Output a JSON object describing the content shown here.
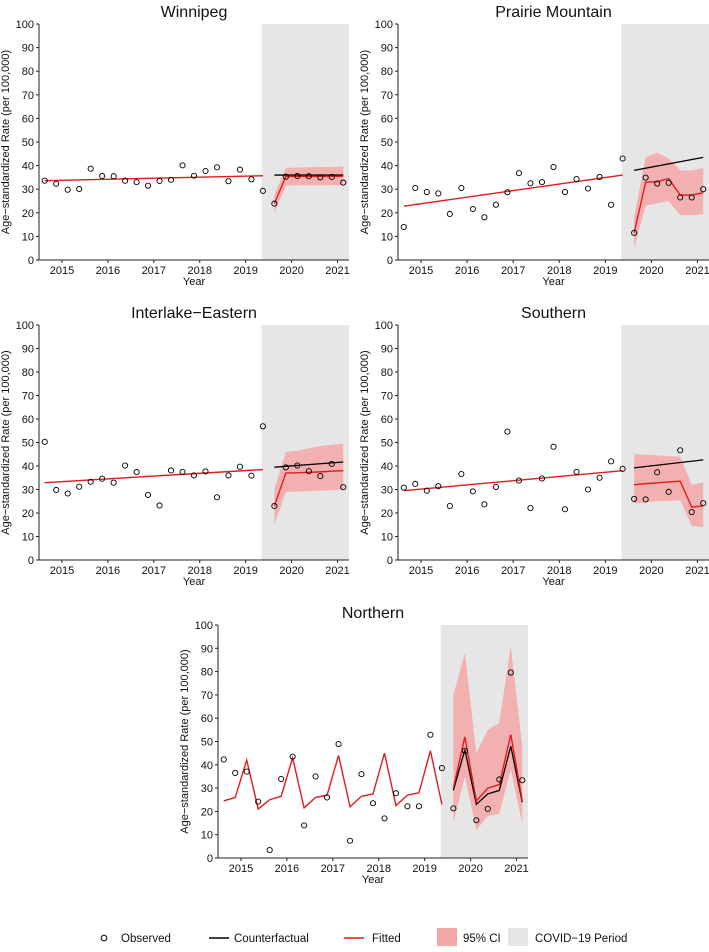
{
  "colors": {
    "observed": "#000000",
    "counterfactual": "#000000",
    "fitted": "#e31a1c",
    "ci": "#f4a6a6",
    "covid_period": "#e6e6e6"
  },
  "legend": {
    "observed": "Observed",
    "counterfactual": "Counterfactual",
    "fitted": "Fitted",
    "ci": "95% CI",
    "covid": "COVID−19 Period"
  },
  "chart_data": [
    {
      "type": "scatter",
      "title": "Winnipeg",
      "xlabel": "Year",
      "ylabel": "Age−standardized Rate (per 100,000)",
      "ylim": [
        0,
        100
      ],
      "yticks": [
        0,
        10,
        20,
        30,
        40,
        50,
        60,
        70,
        80,
        90,
        100
      ],
      "year_labels": [
        "2015",
        "2016",
        "2017",
        "2018",
        "2019",
        "2020",
        "2021"
      ],
      "time_index_range": [
        0,
        27
      ],
      "covid_start_index": 22,
      "observed": [
        33.6,
        32.3,
        29.8,
        30.1,
        38.7,
        35.6,
        35.5,
        33.6,
        33.0,
        31.5,
        33.5,
        34.0,
        40.1,
        35.7,
        37.7,
        39.3,
        33.4,
        38.3,
        34.2,
        29.3,
        23.9,
        35.3,
        35.6,
        35.5,
        35.0,
        35.2,
        32.8
      ],
      "fitted_pre": [
        33.6,
        35.7
      ],
      "fitted_post": [
        23.9,
        35.4,
        35.4,
        35.4,
        35.4,
        35.4,
        35.5
      ],
      "counterfactual": [
        36.0,
        36.0
      ],
      "ci_post": [
        [
          20.0,
          27.5
        ],
        [
          31.5,
          39.0
        ],
        [
          31.6,
          39.2
        ],
        [
          31.6,
          39.3
        ],
        [
          31.7,
          39.4
        ],
        [
          31.7,
          39.4
        ],
        [
          31.8,
          39.6
        ]
      ]
    },
    {
      "type": "scatter",
      "title": "Prairie Mountain",
      "xlabel": "Year",
      "ylabel": "Age−standardized Rate (per 100,000)",
      "ylim": [
        0,
        100
      ],
      "yticks": [
        0,
        10,
        20,
        30,
        40,
        50,
        60,
        70,
        80,
        90,
        100
      ],
      "year_labels": [
        "2015",
        "2016",
        "2017",
        "2018",
        "2019",
        "2020",
        "2021"
      ],
      "time_index_range": [
        0,
        27
      ],
      "covid_start_index": 22,
      "observed": [
        14.0,
        30.5,
        28.8,
        28.2,
        19.5,
        30.5,
        21.6,
        18.1,
        23.4,
        28.7,
        36.8,
        32.5,
        33.0,
        39.4,
        28.8,
        34.3,
        30.3,
        35.2,
        23.4,
        43.0,
        11.5,
        34.9,
        32.4,
        32.7,
        26.5,
        26.5,
        30.0
      ],
      "fitted_pre": [
        22.8,
        36.0
      ],
      "fitted_post": [
        11.5,
        33.0,
        33.2,
        34.5,
        27.5,
        27.5,
        28.5
      ],
      "counterfactual": [
        38.0,
        43.5
      ],
      "ci_post": [
        [
          5.0,
          18.0
        ],
        [
          23.0,
          43.5
        ],
        [
          24.0,
          45.5
        ],
        [
          25.0,
          43.0
        ],
        [
          19.0,
          38.0
        ],
        [
          19.0,
          38.0
        ],
        [
          19.5,
          39.0
        ]
      ]
    },
    {
      "type": "scatter",
      "title": "Interlake−Eastern",
      "xlabel": "Year",
      "ylabel": "Age−standardized Rate (per 100,000)",
      "ylim": [
        0,
        100
      ],
      "yticks": [
        0,
        10,
        20,
        30,
        40,
        50,
        60,
        70,
        80,
        90,
        100
      ],
      "year_labels": [
        "2015",
        "2016",
        "2017",
        "2018",
        "2019",
        "2020",
        "2021"
      ],
      "time_index_range": [
        0,
        27
      ],
      "covid_start_index": 22,
      "observed": [
        50.3,
        29.8,
        28.3,
        31.2,
        33.3,
        34.6,
        32.9,
        40.2,
        37.4,
        27.7,
        23.2,
        38.1,
        37.5,
        36.0,
        37.7,
        26.7,
        36.0,
        39.7,
        35.9,
        56.9,
        23.0,
        39.4,
        40.2,
        37.8,
        35.7,
        40.9,
        31.0
      ],
      "fitted_pre": [
        32.9,
        38.5
      ],
      "fitted_post": [
        23.0,
        37.0,
        37.1,
        37.3,
        37.5,
        37.8,
        38.0
      ],
      "counterfactual": [
        39.5,
        41.7
      ],
      "ci_post": [
        [
          15.0,
          30.0
        ],
        [
          29.0,
          46.0
        ],
        [
          29.1,
          46.5
        ],
        [
          29.3,
          47.5
        ],
        [
          29.5,
          48.5
        ],
        [
          29.7,
          49.0
        ],
        [
          30.0,
          49.5
        ]
      ]
    },
    {
      "type": "scatter",
      "title": "Southern",
      "xlabel": "Year",
      "ylabel": "Age−standardized Rate (per 100,000)",
      "ylim": [
        0,
        100
      ],
      "yticks": [
        0,
        10,
        20,
        30,
        40,
        50,
        60,
        70,
        80,
        90,
        100
      ],
      "year_labels": [
        "2015",
        "2016",
        "2017",
        "2018",
        "2019",
        "2020",
        "2021"
      ],
      "time_index_range": [
        0,
        27
      ],
      "covid_start_index": 22,
      "observed": [
        30.8,
        32.4,
        29.5,
        31.4,
        23.0,
        36.6,
        29.2,
        23.7,
        31.1,
        54.6,
        33.8,
        22.1,
        34.7,
        48.2,
        21.6,
        37.5,
        30.0,
        35.0,
        42.0,
        38.8,
        26.0,
        25.8,
        37.3,
        29.0,
        46.7,
        20.4,
        24.2
      ],
      "fitted_pre": [
        29.5,
        38.0
      ],
      "fitted_post": [
        32.0,
        32.5,
        32.8,
        33.2,
        33.5,
        22.5,
        23.0
      ],
      "counterfactual": [
        39.2,
        42.6
      ],
      "ci_post": [
        [
          24.0,
          45.0
        ],
        [
          24.5,
          44.8
        ],
        [
          25.0,
          44.5
        ],
        [
          25.2,
          44.2
        ],
        [
          25.5,
          44.0
        ],
        [
          14.5,
          32.0
        ],
        [
          14.0,
          33.0
        ]
      ]
    },
    {
      "type": "scatter",
      "title": "Northern",
      "xlabel": "Year",
      "ylabel": "Age−standardized Rate (per 100,000)",
      "ylim": [
        0,
        100
      ],
      "yticks": [
        0,
        10,
        20,
        30,
        40,
        50,
        60,
        70,
        80,
        90,
        100
      ],
      "year_labels": [
        "2015",
        "2016",
        "2017",
        "2018",
        "2019",
        "2020",
        "2021"
      ],
      "time_index_range": [
        0,
        27
      ],
      "covid_start_index": 22,
      "observed": [
        42.3,
        36.5,
        37.1,
        24.2,
        3.4,
        33.9,
        43.5,
        14.0,
        35.0,
        26.0,
        48.9,
        7.4,
        36.0,
        23.5,
        17.0,
        27.8,
        22.2,
        22.2,
        52.9,
        38.6,
        21.3,
        46.0,
        16.2,
        21.1,
        33.7,
        79.6,
        33.4
      ],
      "fitted_pre": [
        24.5,
        26.0,
        42.0,
        21.0,
        25.0,
        26.5,
        43.0,
        21.5,
        26.0,
        27.0,
        44.0,
        22.0,
        26.5,
        27.5,
        45.0,
        22.5,
        27.0,
        28.0,
        46.0,
        23.0
      ],
      "fitted_post": [
        30.0,
        52.0,
        24.5,
        30.0,
        31.5,
        53.0,
        24.5
      ],
      "counterfactual": [
        29.0,
        46.5,
        23.0,
        27.5,
        29.0,
        48.0,
        24.0
      ],
      "ci_post": [
        [
          15.0,
          70.0
        ],
        [
          35.0,
          88.0
        ],
        [
          12.0,
          45.0
        ],
        [
          18.0,
          55.0
        ],
        [
          19.0,
          58.0
        ],
        [
          38.0,
          91.0
        ],
        [
          15.0,
          48.0
        ]
      ]
    }
  ]
}
